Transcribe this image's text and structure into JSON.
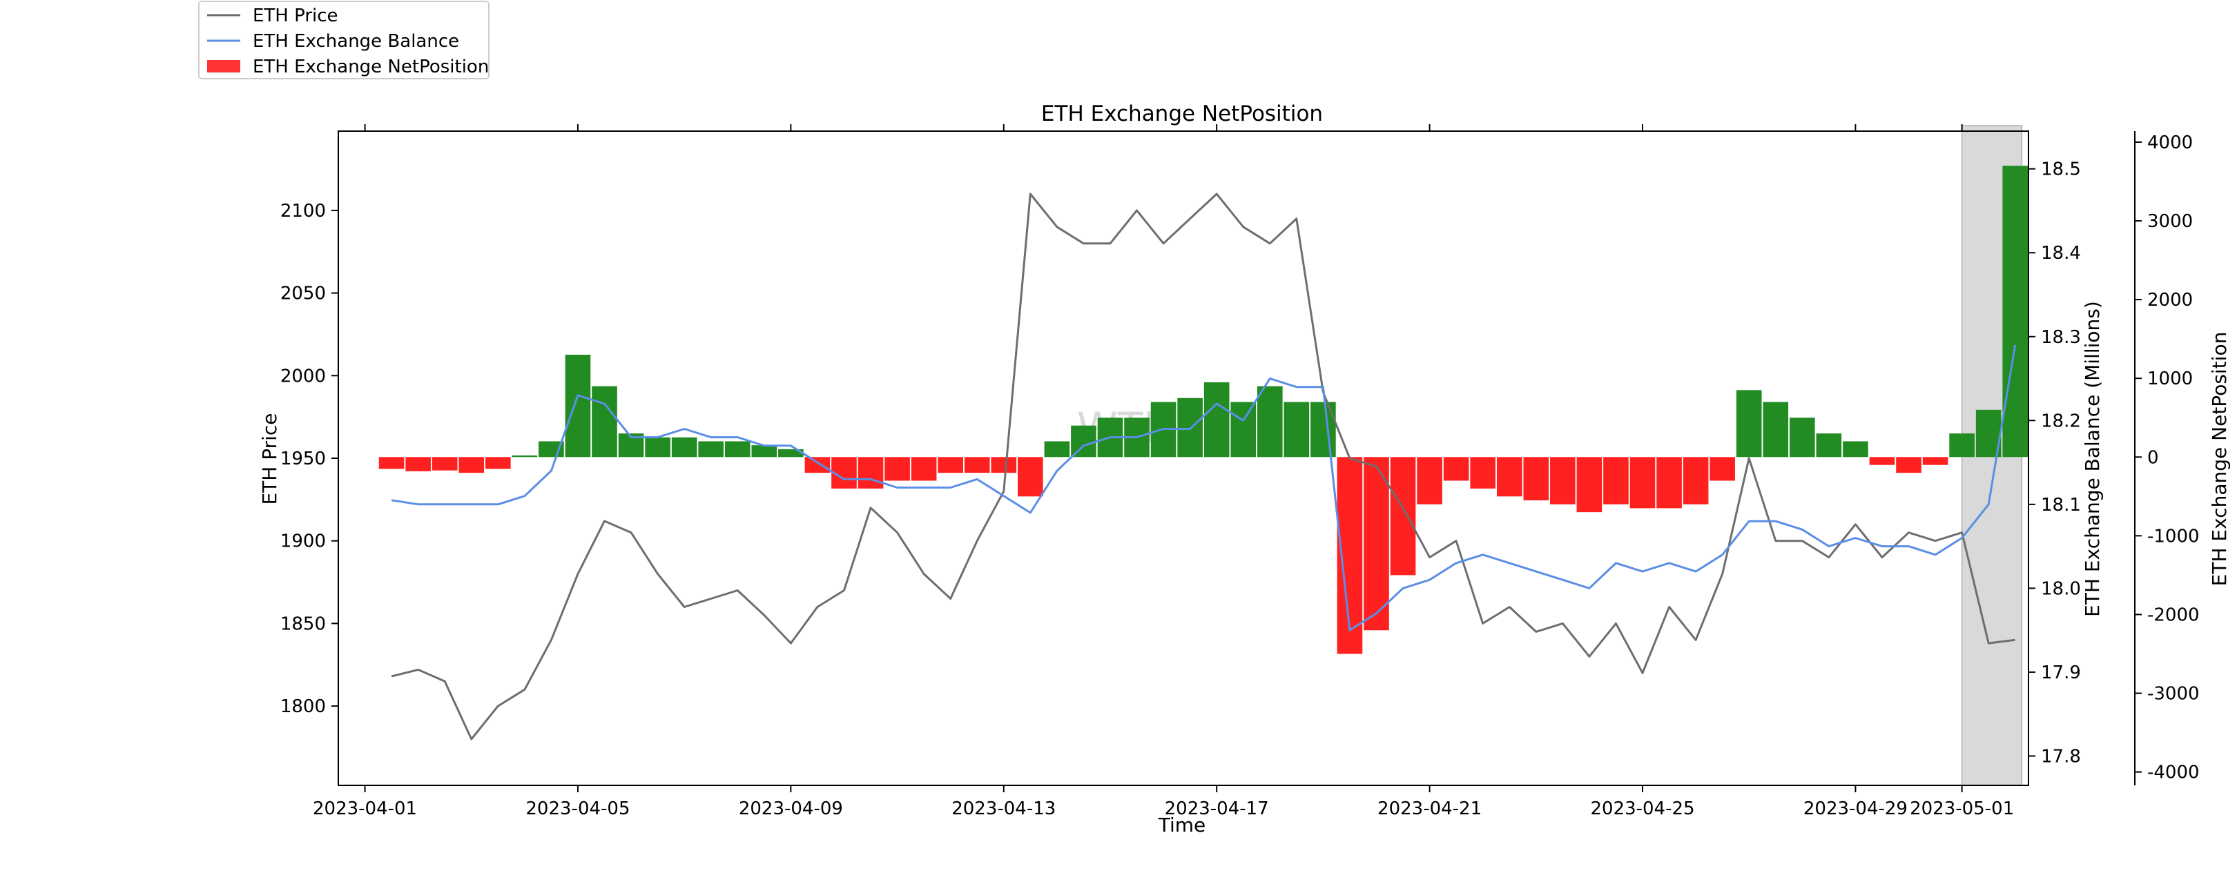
{
  "chart_data": {
    "type": "line",
    "title": "ETH Exchange NetPosition",
    "xlabel": "Time",
    "x_ticks": [
      "2023-04-01",
      "2023-04-05",
      "2023-04-09",
      "2023-04-13",
      "2023-04-17",
      "2023-04-21",
      "2023-04-25",
      "2023-04-29",
      "2023-05-01"
    ],
    "x_range": [
      "2023-03-31T12:00",
      "2023-05-02T06:00"
    ],
    "highlight_range": [
      "2023-05-01T00:00",
      "2023-05-02T03:00"
    ],
    "watermark": "WTF",
    "legend": {
      "placement": "top-left",
      "entries": [
        {
          "label": "ETH Price",
          "color": "#6e6e6e",
          "kind": "line"
        },
        {
          "label": "ETH Exchange Balance",
          "color": "#5b8ee6",
          "kind": "line"
        },
        {
          "label": "ETH Exchange NetPosition",
          "color": "#ff3333",
          "kind": "patch"
        }
      ]
    },
    "axes": {
      "price": {
        "label": "ETH Price",
        "side": "left",
        "ylim": [
          1752,
          2148
        ],
        "ticks": [
          "1800",
          "1850",
          "1900",
          "1950",
          "2000",
          "2050",
          "2100"
        ]
      },
      "balance": {
        "label": "ETH Exchange Balance (Millions)",
        "side": "right",
        "ylim": [
          17.765,
          18.545
        ],
        "ticks": [
          "17.8",
          "17.9",
          "18.0",
          "18.1",
          "18.2",
          "18.3",
          "18.4",
          "18.5"
        ]
      },
      "netposition": {
        "label": "ETH Exchange NetPosition",
        "side": "right-outer",
        "ylim": [
          -4170,
          4140
        ],
        "ticks": [
          "-4000",
          "-3000",
          "-2000",
          "-1000",
          "0",
          "1000",
          "2000",
          "3000",
          "4000"
        ]
      }
    },
    "series": [
      {
        "name": "ETH Price",
        "axis": "price",
        "color": "#6e6e6e",
        "x": [
          "2023-04-01T12:00",
          "2023-04-02",
          "2023-04-02T12:00",
          "2023-04-03",
          "2023-04-03T12:00",
          "2023-04-04",
          "2023-04-04T12:00",
          "2023-04-05",
          "2023-04-05T12:00",
          "2023-04-06",
          "2023-04-06T12:00",
          "2023-04-07",
          "2023-04-07T12:00",
          "2023-04-08",
          "2023-04-08T12:00",
          "2023-04-09",
          "2023-04-09T12:00",
          "2023-04-10",
          "2023-04-10T12:00",
          "2023-04-11",
          "2023-04-11T12:00",
          "2023-04-12",
          "2023-04-12T12:00",
          "2023-04-13",
          "2023-04-13T12:00",
          "2023-04-14",
          "2023-04-14T12:00",
          "2023-04-15",
          "2023-04-15T12:00",
          "2023-04-16",
          "2023-04-16T12:00",
          "2023-04-17",
          "2023-04-17T12:00",
          "2023-04-18",
          "2023-04-18T12:00",
          "2023-04-19",
          "2023-04-19T12:00",
          "2023-04-20",
          "2023-04-20T12:00",
          "2023-04-21",
          "2023-04-21T12:00",
          "2023-04-22",
          "2023-04-22T12:00",
          "2023-04-23",
          "2023-04-23T12:00",
          "2023-04-24",
          "2023-04-24T12:00",
          "2023-04-25",
          "2023-04-25T12:00",
          "2023-04-26",
          "2023-04-26T12:00",
          "2023-04-27",
          "2023-04-27T12:00",
          "2023-04-28",
          "2023-04-28T12:00",
          "2023-04-29",
          "2023-04-29T12:00",
          "2023-04-30",
          "2023-04-30T12:00",
          "2023-05-01",
          "2023-05-01T12:00",
          "2023-05-02"
        ],
        "y": [
          1818,
          1822,
          1815,
          1780,
          1800,
          1810,
          1840,
          1880,
          1912,
          1905,
          1880,
          1860,
          1865,
          1870,
          1855,
          1838,
          1860,
          1870,
          1920,
          1905,
          1880,
          1865,
          1900,
          1930,
          2110,
          2090,
          2080,
          2080,
          2100,
          2080,
          2095,
          2110,
          2090,
          2080,
          2095,
          1990,
          1950,
          1945,
          1920,
          1890,
          1900,
          1850,
          1860,
          1845,
          1850,
          1830,
          1850,
          1820,
          1860,
          1840,
          1880,
          1950,
          1900,
          1900,
          1890,
          1910,
          1890,
          1905,
          1900,
          1905,
          1838,
          1840
        ]
      },
      {
        "name": "ETH Exchange Balance",
        "axis": "balance",
        "color": "#5b8ee6",
        "x": [
          "2023-04-01T12:00",
          "2023-04-02",
          "2023-04-02T12:00",
          "2023-04-03",
          "2023-04-03T12:00",
          "2023-04-04",
          "2023-04-04T12:00",
          "2023-04-05",
          "2023-04-05T12:00",
          "2023-04-06",
          "2023-04-06T12:00",
          "2023-04-07",
          "2023-04-07T12:00",
          "2023-04-08",
          "2023-04-08T12:00",
          "2023-04-09",
          "2023-04-09T12:00",
          "2023-04-10",
          "2023-04-10T12:00",
          "2023-04-11",
          "2023-04-11T12:00",
          "2023-04-12",
          "2023-04-12T12:00",
          "2023-04-13",
          "2023-04-13T12:00",
          "2023-04-14",
          "2023-04-14T12:00",
          "2023-04-15",
          "2023-04-15T12:00",
          "2023-04-16",
          "2023-04-16T12:00",
          "2023-04-17",
          "2023-04-17T12:00",
          "2023-04-18",
          "2023-04-18T12:00",
          "2023-04-19",
          "2023-04-19T12:00",
          "2023-04-20",
          "2023-04-20T12:00",
          "2023-04-21",
          "2023-04-21T12:00",
          "2023-04-22",
          "2023-04-22T12:00",
          "2023-04-23",
          "2023-04-23T12:00",
          "2023-04-24",
          "2023-04-24T12:00",
          "2023-04-25",
          "2023-04-25T12:00",
          "2023-04-26",
          "2023-04-26T12:00",
          "2023-04-27",
          "2023-04-27T12:00",
          "2023-04-28",
          "2023-04-28T12:00",
          "2023-04-29",
          "2023-04-29T12:00",
          "2023-04-30",
          "2023-04-30T12:00",
          "2023-05-01",
          "2023-05-01T12:00",
          "2023-05-02"
        ],
        "y": [
          18.105,
          18.1,
          18.1,
          18.1,
          18.1,
          18.11,
          18.14,
          18.23,
          18.22,
          18.18,
          18.18,
          18.19,
          18.18,
          18.18,
          18.17,
          18.17,
          18.15,
          18.13,
          18.13,
          18.12,
          18.12,
          18.12,
          18.13,
          18.11,
          18.09,
          18.14,
          18.17,
          18.18,
          18.18,
          18.19,
          18.19,
          18.22,
          18.2,
          18.25,
          18.24,
          18.24,
          17.95,
          17.97,
          18.0,
          18.01,
          18.03,
          18.04,
          18.03,
          18.02,
          18.01,
          18.0,
          18.03,
          18.02,
          18.03,
          18.02,
          18.04,
          18.08,
          18.08,
          18.07,
          18.05,
          18.06,
          18.05,
          18.05,
          18.04,
          18.06,
          18.1,
          18.29
        ]
      }
    ],
    "bars": {
      "name": "ETH Exchange NetPosition",
      "axis": "netposition",
      "positive_color": "#228b22",
      "negative_color": "#ff2020",
      "x": [
        "2023-04-01T12:00",
        "2023-04-02",
        "2023-04-02T12:00",
        "2023-04-03",
        "2023-04-03T12:00",
        "2023-04-04",
        "2023-04-04T12:00",
        "2023-04-05",
        "2023-04-05T12:00",
        "2023-04-06",
        "2023-04-06T12:00",
        "2023-04-07",
        "2023-04-07T12:00",
        "2023-04-08",
        "2023-04-08T12:00",
        "2023-04-09",
        "2023-04-09T12:00",
        "2023-04-10",
        "2023-04-10T12:00",
        "2023-04-11",
        "2023-04-11T12:00",
        "2023-04-12",
        "2023-04-12T12:00",
        "2023-04-13",
        "2023-04-13T12:00",
        "2023-04-14",
        "2023-04-14T12:00",
        "2023-04-15",
        "2023-04-15T12:00",
        "2023-04-16",
        "2023-04-16T12:00",
        "2023-04-17",
        "2023-04-17T12:00",
        "2023-04-18",
        "2023-04-18T12:00",
        "2023-04-19",
        "2023-04-19T12:00",
        "2023-04-20",
        "2023-04-20T12:00",
        "2023-04-21",
        "2023-04-21T12:00",
        "2023-04-22",
        "2023-04-22T12:00",
        "2023-04-23",
        "2023-04-23T12:00",
        "2023-04-24",
        "2023-04-24T12:00",
        "2023-04-25",
        "2023-04-25T12:00",
        "2023-04-26",
        "2023-04-26T12:00",
        "2023-04-27",
        "2023-04-27T12:00",
        "2023-04-28",
        "2023-04-28T12:00",
        "2023-04-29",
        "2023-04-29T12:00",
        "2023-04-30",
        "2023-04-30T12:00",
        "2023-05-01",
        "2023-05-01T12:00",
        "2023-05-02"
      ],
      "values": [
        -150,
        -180,
        -170,
        -200,
        -150,
        20,
        200,
        1300,
        900,
        300,
        250,
        250,
        200,
        200,
        150,
        100,
        -200,
        -400,
        -400,
        -300,
        -300,
        -200,
        -200,
        -200,
        -500,
        200,
        400,
        500,
        500,
        700,
        750,
        950,
        700,
        900,
        700,
        700,
        -2500,
        -2200,
        -1500,
        -600,
        -300,
        -400,
        -500,
        -550,
        -600,
        -700,
        -600,
        -650,
        -650,
        -600,
        -300,
        850,
        700,
        500,
        300,
        200,
        -100,
        -200,
        -100,
        300,
        600,
        3700
      ]
    }
  }
}
